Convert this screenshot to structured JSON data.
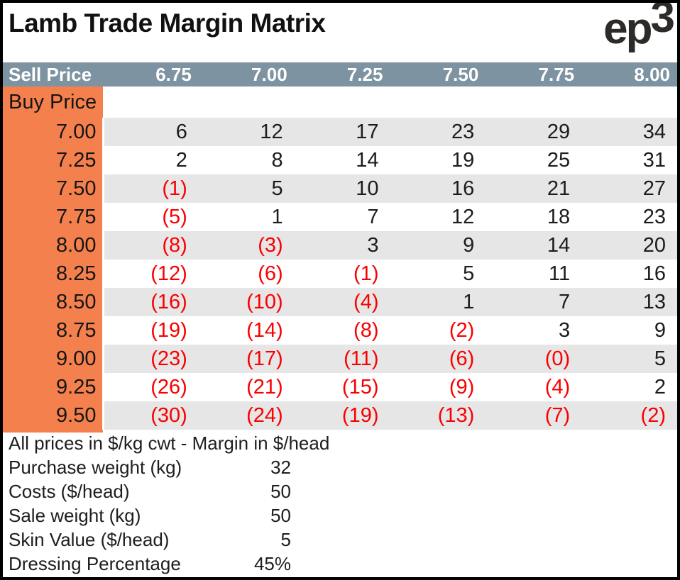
{
  "header": {
    "title": "Lamb Trade Margin Matrix",
    "logo_ep": "ep",
    "logo_3": "3"
  },
  "colors": {
    "header_bg": "#7D93A1",
    "buy_column_bg": "#F4814D",
    "stripe_bg": "#E6E6E6",
    "negative_text": "#FA0000"
  },
  "matrix": {
    "corner_label": "Sell Price",
    "row_header_label": "Buy Price",
    "sell_prices": [
      "6.75",
      "7.00",
      "7.25",
      "7.50",
      "7.75",
      "8.00"
    ],
    "rows": [
      {
        "buy": "7.00",
        "values": [
          "6",
          "12",
          "17",
          "23",
          "29",
          "34"
        ]
      },
      {
        "buy": "7.25",
        "values": [
          "2",
          "8",
          "14",
          "19",
          "25",
          "31"
        ]
      },
      {
        "buy": "7.50",
        "values": [
          "(1)",
          "5",
          "10",
          "16",
          "21",
          "27"
        ]
      },
      {
        "buy": "7.75",
        "values": [
          "(5)",
          "1",
          "7",
          "12",
          "18",
          "23"
        ]
      },
      {
        "buy": "8.00",
        "values": [
          "(8)",
          "(3)",
          "3",
          "9",
          "14",
          "20"
        ]
      },
      {
        "buy": "8.25",
        "values": [
          "(12)",
          "(6)",
          "(1)",
          "5",
          "11",
          "16"
        ]
      },
      {
        "buy": "8.50",
        "values": [
          "(16)",
          "(10)",
          "(4)",
          "1",
          "7",
          "13"
        ]
      },
      {
        "buy": "8.75",
        "values": [
          "(19)",
          "(14)",
          "(8)",
          "(2)",
          "3",
          "9"
        ]
      },
      {
        "buy": "9.00",
        "values": [
          "(23)",
          "(17)",
          "(11)",
          "(6)",
          "(0)",
          "5"
        ]
      },
      {
        "buy": "9.25",
        "values": [
          "(26)",
          "(21)",
          "(15)",
          "(9)",
          "(4)",
          "2"
        ]
      },
      {
        "buy": "9.50",
        "values": [
          "(30)",
          "(24)",
          "(19)",
          "(13)",
          "(7)",
          "(2)"
        ]
      }
    ]
  },
  "footer": {
    "note": "All prices in $/kg cwt - Margin in $/head",
    "params": [
      {
        "label": "Purchase weight (kg)",
        "value": "32"
      },
      {
        "label": "Costs ($/head)",
        "value": "50"
      },
      {
        "label": "Sale weight (kg)",
        "value": "50"
      },
      {
        "label": "Skin Value ($/head)",
        "value": "5"
      },
      {
        "label": "Dressing Percentage",
        "value": "45%"
      }
    ]
  },
  "chart_data": {
    "type": "table",
    "title": "Lamb Trade Margin Matrix",
    "xlabel": "Sell Price ($/kg cwt)",
    "ylabel": "Buy Price ($/kg cwt)",
    "units": "Margin in $/head",
    "columns": [
      6.75,
      7.0,
      7.25,
      7.5,
      7.75,
      8.0
    ],
    "rows": [
      7.0,
      7.25,
      7.5,
      7.75,
      8.0,
      8.25,
      8.5,
      8.75,
      9.0,
      9.25,
      9.5
    ],
    "values": [
      [
        6,
        12,
        17,
        23,
        29,
        34
      ],
      [
        2,
        8,
        14,
        19,
        25,
        31
      ],
      [
        -1,
        5,
        10,
        16,
        21,
        27
      ],
      [
        -5,
        1,
        7,
        12,
        18,
        23
      ],
      [
        -8,
        -3,
        3,
        9,
        14,
        20
      ],
      [
        -12,
        -6,
        -1,
        5,
        11,
        16
      ],
      [
        -16,
        -10,
        -4,
        1,
        7,
        13
      ],
      [
        -19,
        -14,
        -8,
        -2,
        3,
        9
      ],
      [
        -23,
        -17,
        -11,
        -6,
        0,
        5
      ],
      [
        -26,
        -21,
        -15,
        -9,
        -4,
        2
      ],
      [
        -30,
        -24,
        -19,
        -13,
        -7,
        -2
      ]
    ],
    "parameters": {
      "purchase_weight_kg": 32,
      "costs_per_head": 50,
      "sale_weight_kg": 50,
      "skin_value_per_head": 5,
      "dressing_percentage": "45%"
    }
  }
}
